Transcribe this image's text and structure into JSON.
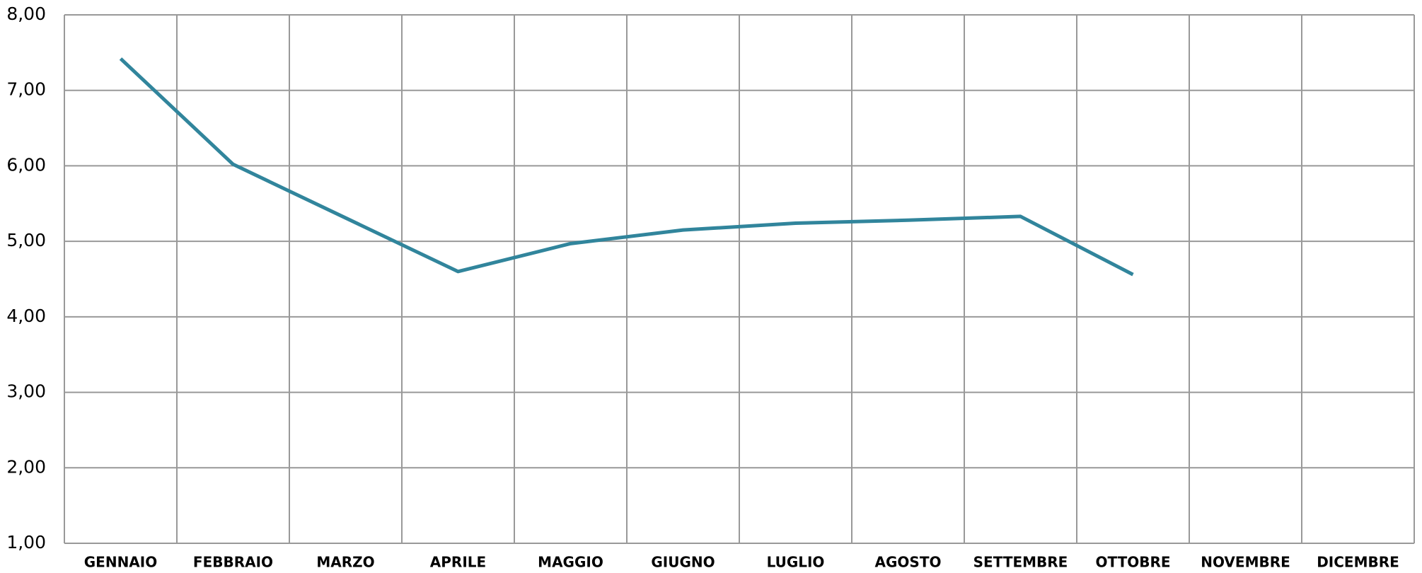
{
  "chart_data": {
    "type": "line",
    "categories": [
      "GENNAIO",
      "FEBBRAIO",
      "MARZO",
      "APRILE",
      "MAGGIO",
      "GIUGNO",
      "LUGLIO",
      "AGOSTO",
      "SETTEMBRE",
      "OTTOBRE",
      "NOVEMBRE",
      "DICEMBRE"
    ],
    "values": [
      7.42,
      6.02,
      5.31,
      4.6,
      4.97,
      5.15,
      5.24,
      5.28,
      5.33,
      4.56,
      null,
      null
    ],
    "color": "#31859c",
    "ylim": [
      1,
      8
    ],
    "yticks": [
      {
        "value": 1,
        "label": "1,00"
      },
      {
        "value": 2,
        "label": "2,00"
      },
      {
        "value": 3,
        "label": "3,00"
      },
      {
        "value": 4,
        "label": "4,00"
      },
      {
        "value": 5,
        "label": "5,00"
      },
      {
        "value": 6,
        "label": "6,00"
      },
      {
        "value": 7,
        "label": "7,00"
      },
      {
        "value": 8,
        "label": "8,00"
      }
    ],
    "grid": true
  }
}
